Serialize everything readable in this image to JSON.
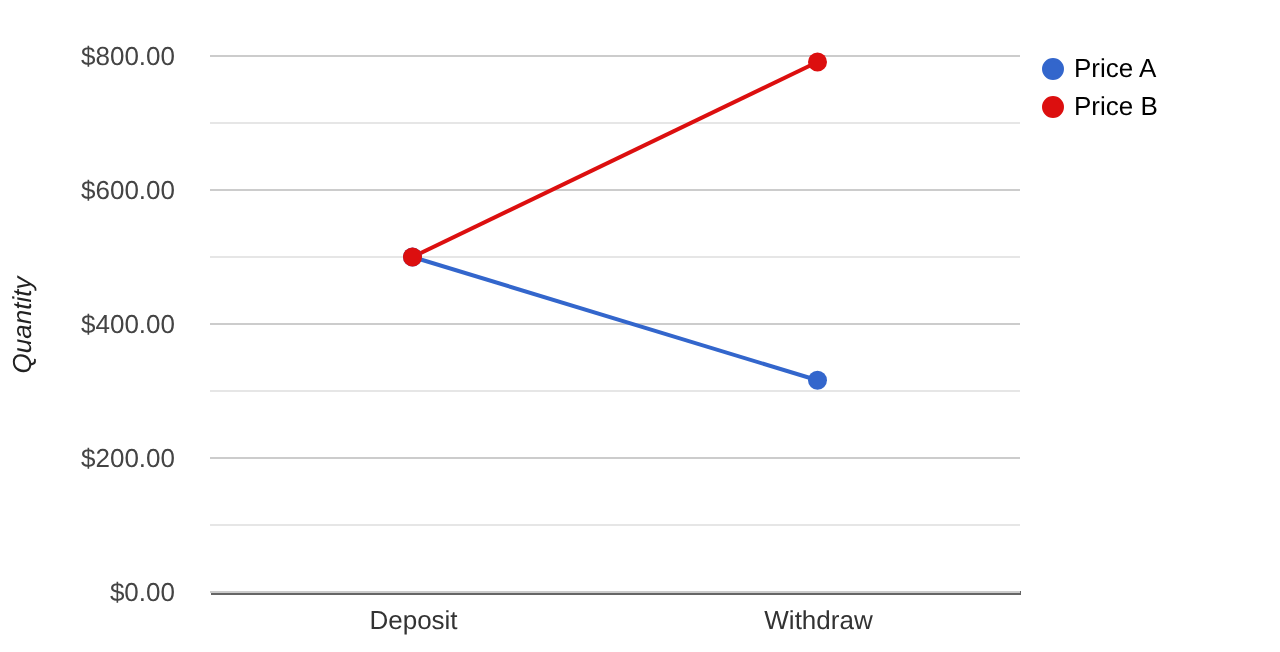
{
  "chart_data": {
    "type": "line",
    "ylabel": "Quantity",
    "categories": [
      "Deposit",
      "Withdraw"
    ],
    "series": [
      {
        "name": "Price A",
        "color": "#3366cc",
        "values": [
          500,
          316
        ]
      },
      {
        "name": "Price B",
        "color": "#dc0f0f",
        "values": [
          500,
          791
        ]
      }
    ],
    "ylim": [
      0,
      800
    ],
    "yticks": [
      {
        "value": 0,
        "label": "$0.00"
      },
      {
        "value": 100,
        "label": null
      },
      {
        "value": 200,
        "label": "$200.00"
      },
      {
        "value": 300,
        "label": null
      },
      {
        "value": 400,
        "label": "$400.00"
      },
      {
        "value": 500,
        "label": null
      },
      {
        "value": 600,
        "label": "$600.00"
      },
      {
        "value": 700,
        "label": null
      },
      {
        "value": 800,
        "label": "$800.00"
      }
    ],
    "grid": "y",
    "legend": "top right",
    "marker": "circle",
    "line_style": "solid"
  }
}
